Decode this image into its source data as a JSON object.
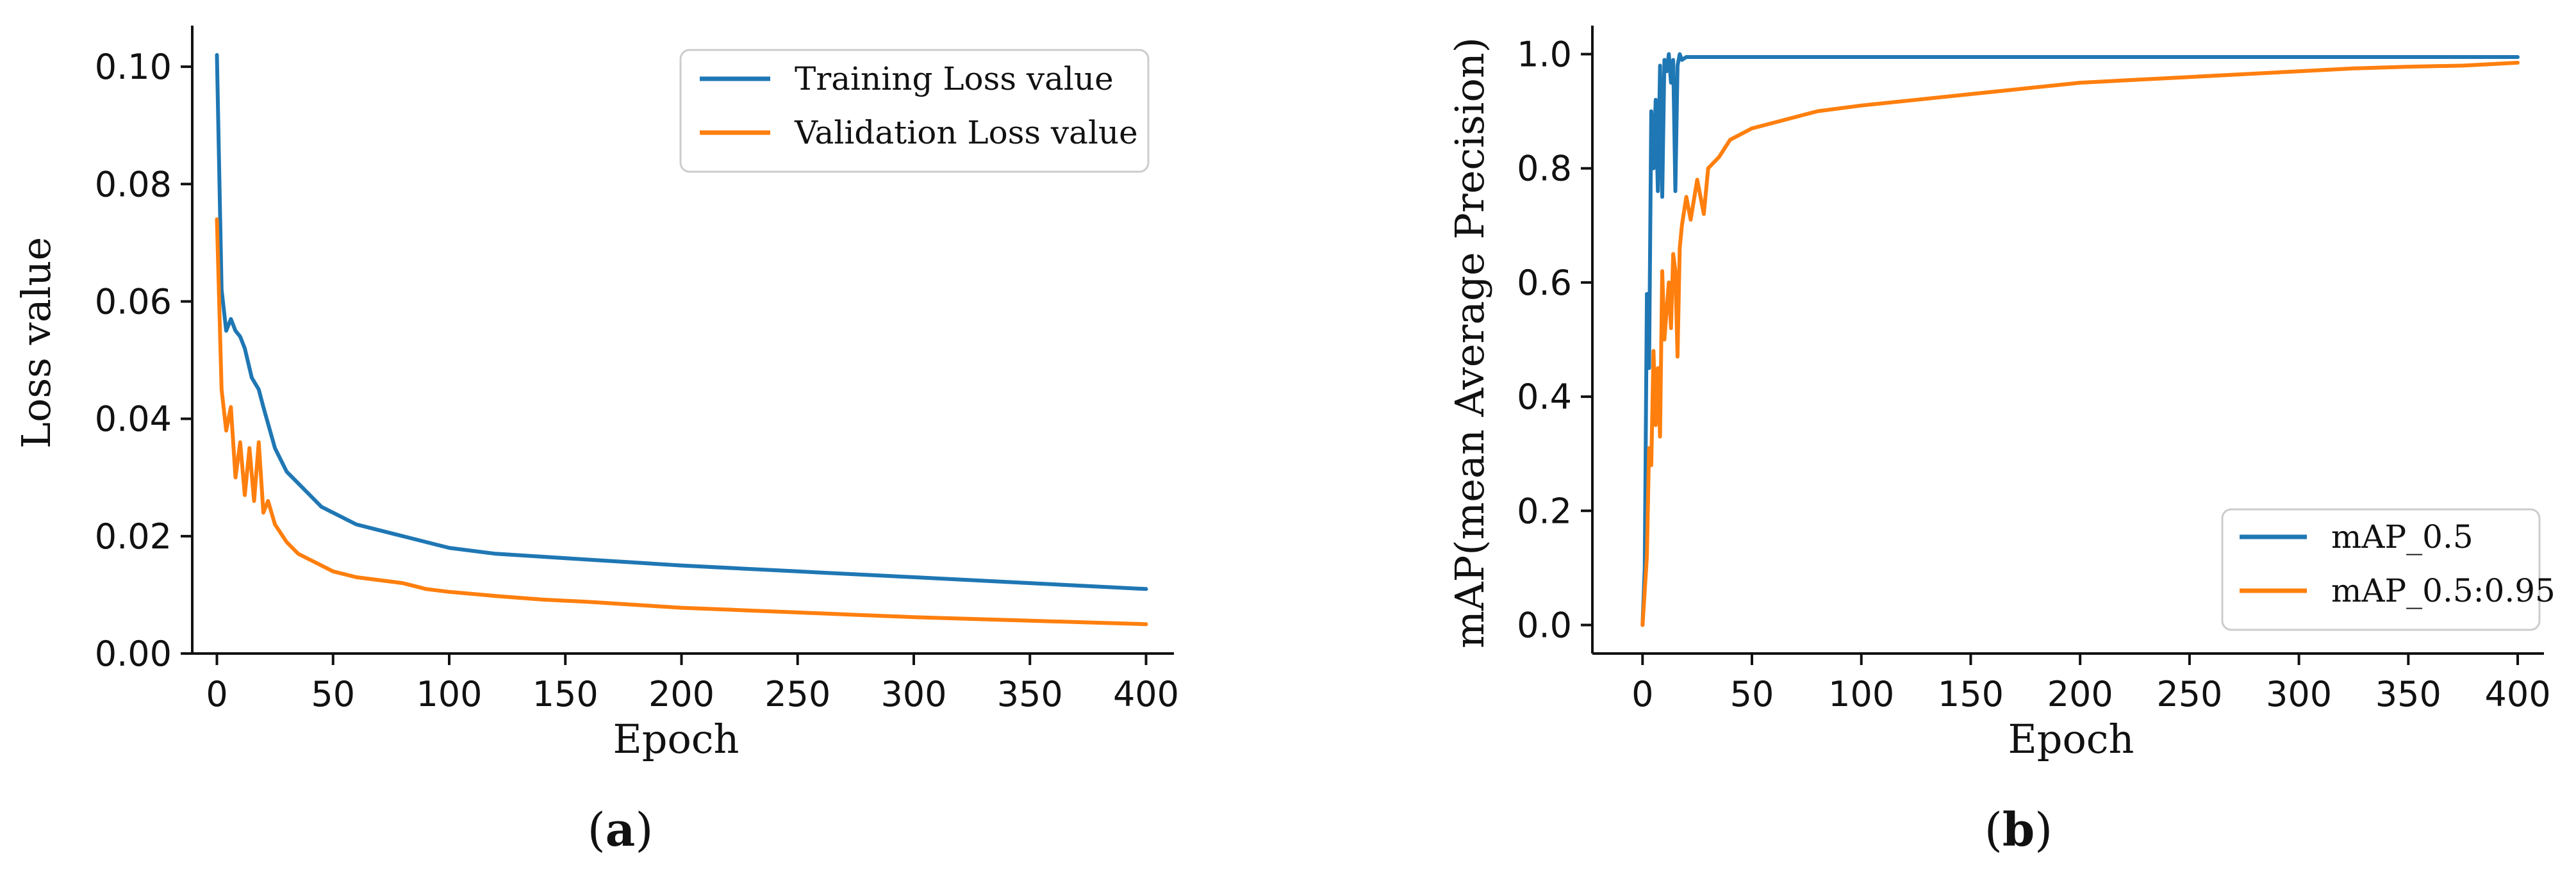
{
  "figure": {
    "caption_a": {
      "open": "(",
      "letter": "a",
      "close": ")"
    },
    "caption_b": {
      "open": "(",
      "letter": "b",
      "close": ")"
    }
  },
  "chart_data": [
    {
      "id": "a",
      "type": "line",
      "title": "",
      "xlabel": "Epoch",
      "ylabel": "Loss value",
      "xlim": [
        -12,
        412
      ],
      "ylim": [
        0,
        0.107
      ],
      "xticks": [
        0,
        50,
        100,
        150,
        200,
        250,
        300,
        350,
        400
      ],
      "yticks": [
        0.0,
        0.02,
        0.04,
        0.06,
        0.08,
        0.1
      ],
      "ytick_labels": [
        "0.00",
        "0.02",
        "0.04",
        "0.06",
        "0.08",
        "0.10"
      ],
      "legend_position": "top-right",
      "grid": false,
      "series": [
        {
          "name": "Training Loss value",
          "color": "#1f77b4",
          "x": [
            0,
            2,
            4,
            6,
            8,
            10,
            12,
            15,
            18,
            20,
            25,
            30,
            35,
            40,
            45,
            50,
            60,
            70,
            80,
            90,
            100,
            120,
            140,
            160,
            180,
            200,
            225,
            250,
            275,
            300,
            325,
            350,
            375,
            400
          ],
          "values": [
            0.102,
            0.062,
            0.055,
            0.057,
            0.055,
            0.054,
            0.052,
            0.047,
            0.045,
            0.042,
            0.035,
            0.031,
            0.029,
            0.027,
            0.025,
            0.024,
            0.022,
            0.021,
            0.02,
            0.019,
            0.018,
            0.017,
            0.0165,
            0.016,
            0.0155,
            0.015,
            0.0145,
            0.014,
            0.0135,
            0.013,
            0.0125,
            0.012,
            0.0115,
            0.011
          ]
        },
        {
          "name": "Validation Loss value",
          "color": "#ff7f0e",
          "x": [
            0,
            2,
            4,
            6,
            8,
            10,
            12,
            14,
            16,
            18,
            20,
            22,
            25,
            30,
            35,
            40,
            45,
            50,
            60,
            70,
            80,
            90,
            100,
            120,
            140,
            160,
            180,
            200,
            225,
            250,
            275,
            300,
            325,
            350,
            375,
            400
          ],
          "values": [
            0.074,
            0.045,
            0.038,
            0.042,
            0.03,
            0.036,
            0.027,
            0.035,
            0.026,
            0.036,
            0.024,
            0.026,
            0.022,
            0.019,
            0.017,
            0.016,
            0.015,
            0.014,
            0.013,
            0.0125,
            0.012,
            0.011,
            0.0105,
            0.0098,
            0.0092,
            0.0088,
            0.0083,
            0.0078,
            0.0074,
            0.007,
            0.0066,
            0.0062,
            0.0059,
            0.0056,
            0.0053,
            0.005
          ]
        }
      ]
    },
    {
      "id": "b",
      "type": "line",
      "title": "",
      "xlabel": "Epoch",
      "ylabel": "mAP(mean Average Precision)",
      "xlim": [
        -20,
        412
      ],
      "ylim": [
        -0.05,
        1.05
      ],
      "xticks": [
        0,
        50,
        100,
        150,
        200,
        250,
        300,
        350,
        400
      ],
      "yticks": [
        0.0,
        0.2,
        0.4,
        0.6,
        0.8,
        1.0
      ],
      "ytick_labels": [
        "0.0",
        "0.2",
        "0.4",
        "0.6",
        "0.8",
        "1.0"
      ],
      "legend_position": "bottom-right",
      "grid": false,
      "series": [
        {
          "name": "mAP_0.5",
          "color": "#1f77b4",
          "x": [
            0,
            1,
            2,
            3,
            4,
            5,
            6,
            7,
            8,
            9,
            10,
            11,
            12,
            13,
            14,
            15,
            16,
            17,
            18,
            20,
            25,
            30,
            50,
            100,
            150,
            200,
            250,
            300,
            350,
            400
          ],
          "values": [
            0.0,
            0.1,
            0.58,
            0.45,
            0.9,
            0.8,
            0.92,
            0.76,
            0.98,
            0.75,
            0.99,
            0.97,
            1.0,
            0.95,
            0.99,
            0.76,
            0.98,
            1.0,
            0.99,
            0.995,
            0.995,
            0.995,
            0.995,
            0.995,
            0.995,
            0.995,
            0.995,
            0.995,
            0.995,
            0.995
          ]
        },
        {
          "name": "mAP_0.5:0.95",
          "color": "#ff7f0e",
          "x": [
            0,
            2,
            3,
            4,
            5,
            6,
            7,
            8,
            9,
            10,
            11,
            12,
            13,
            14,
            15,
            16,
            17,
            18,
            20,
            22,
            25,
            28,
            30,
            35,
            40,
            50,
            60,
            70,
            80,
            100,
            125,
            150,
            175,
            200,
            225,
            250,
            275,
            300,
            325,
            350,
            375,
            400
          ],
          "values": [
            0.0,
            0.12,
            0.31,
            0.28,
            0.48,
            0.35,
            0.45,
            0.33,
            0.62,
            0.5,
            0.55,
            0.6,
            0.52,
            0.65,
            0.62,
            0.47,
            0.66,
            0.7,
            0.75,
            0.71,
            0.78,
            0.72,
            0.8,
            0.82,
            0.85,
            0.87,
            0.88,
            0.89,
            0.9,
            0.91,
            0.92,
            0.93,
            0.94,
            0.95,
            0.955,
            0.96,
            0.965,
            0.97,
            0.975,
            0.978,
            0.98,
            0.985
          ]
        }
      ]
    }
  ]
}
